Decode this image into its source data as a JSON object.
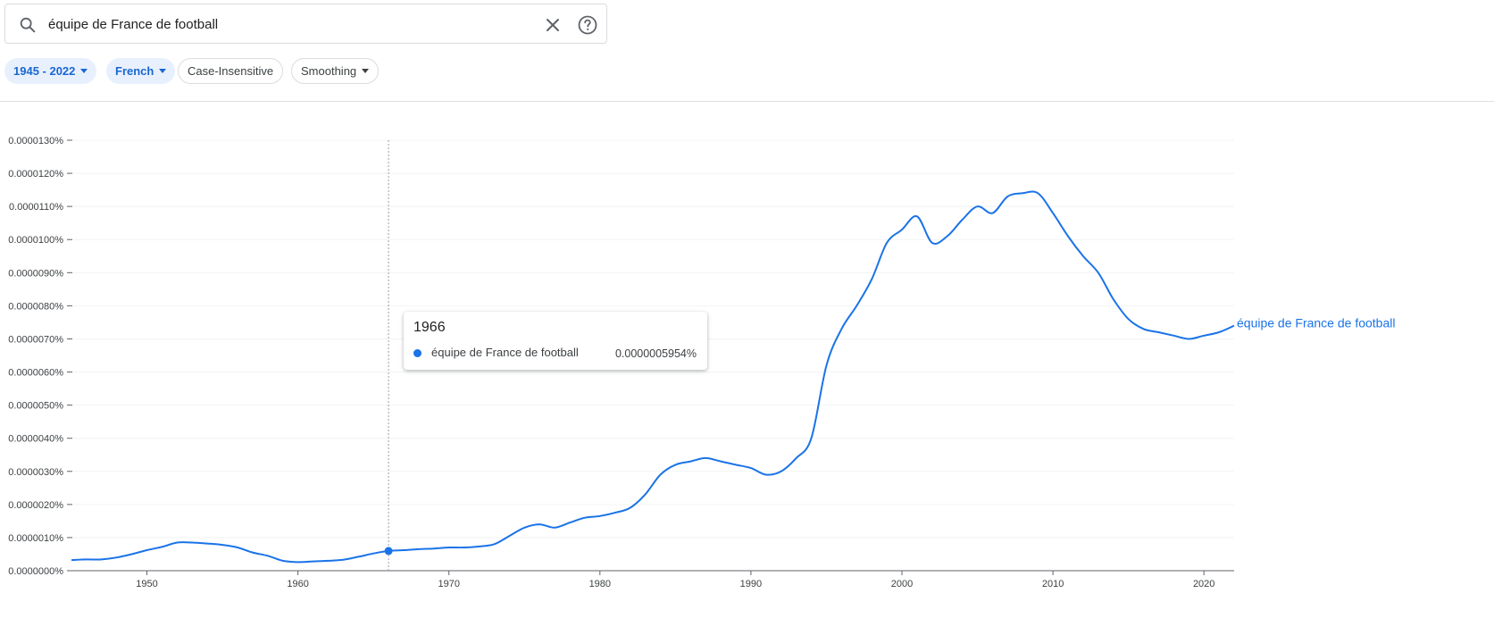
{
  "search": {
    "value": "équipe de France de football",
    "placeholder": ""
  },
  "icons": {
    "search": "search-icon",
    "clear": "close-icon",
    "help": "help-icon"
  },
  "filters": {
    "year_range": "1945 - 2022",
    "corpus": "French",
    "case": "Case-Insensitive",
    "smoothing": "Smoothing"
  },
  "colors": {
    "series": "#1a73e8",
    "chip_active_bg": "#e8f0fe",
    "chip_active_text": "#1967d2"
  },
  "tooltip": {
    "year": "1966",
    "series_name": "équipe de France de football",
    "value": "0.0000005954%"
  },
  "chart_data": {
    "type": "line",
    "title": "",
    "xlabel": "",
    "ylabel": "",
    "xlim": [
      1945,
      2022
    ],
    "ylim": [
      0,
      1.3e-05
    ],
    "y_unit": "%",
    "x_ticks": [
      1950,
      1960,
      1970,
      1980,
      1990,
      2000,
      2010,
      2020
    ],
    "y_ticks": [
      {
        "v": 0,
        "label": "0.0000000%"
      },
      {
        "v": 1e-06,
        "label": "0.0000010%"
      },
      {
        "v": 2e-06,
        "label": "0.0000020%"
      },
      {
        "v": 3e-06,
        "label": "0.0000030%"
      },
      {
        "v": 4e-06,
        "label": "0.0000040%"
      },
      {
        "v": 5e-06,
        "label": "0.0000050%"
      },
      {
        "v": 6e-06,
        "label": "0.0000060%"
      },
      {
        "v": 7e-06,
        "label": "0.0000070%"
      },
      {
        "v": 8e-06,
        "label": "0.0000080%"
      },
      {
        "v": 9e-06,
        "label": "0.0000090%"
      },
      {
        "v": 1e-05,
        "label": "0.0000100%"
      },
      {
        "v": 1.1e-05,
        "label": "0.0000110%"
      },
      {
        "v": 1.2e-05,
        "label": "0.0000120%"
      },
      {
        "v": 1.3e-05,
        "label": "0.0000130%"
      }
    ],
    "grid": true,
    "highlight_x": 1966,
    "series": [
      {
        "name": "équipe de France de football",
        "x": [
          1945,
          1946,
          1947,
          1948,
          1949,
          1950,
          1951,
          1952,
          1953,
          1954,
          1955,
          1956,
          1957,
          1958,
          1959,
          1960,
          1961,
          1962,
          1963,
          1964,
          1965,
          1966,
          1967,
          1968,
          1969,
          1970,
          1971,
          1972,
          1973,
          1974,
          1975,
          1976,
          1977,
          1978,
          1979,
          1980,
          1981,
          1982,
          1983,
          1984,
          1985,
          1986,
          1987,
          1988,
          1989,
          1990,
          1991,
          1992,
          1993,
          1994,
          1995,
          1996,
          1997,
          1998,
          1999,
          2000,
          2001,
          2002,
          2003,
          2004,
          2005,
          2006,
          2007,
          2008,
          2009,
          2010,
          2011,
          2012,
          2013,
          2014,
          2015,
          2016,
          2017,
          2018,
          2019,
          2020,
          2021,
          2022
        ],
        "values": [
          3.2e-07,
          3.4e-07,
          3.4e-07,
          4e-07,
          5e-07,
          6.2e-07,
          7.2e-07,
          8.5e-07,
          8.5e-07,
          8.2e-07,
          7.8e-07,
          7e-07,
          5.5e-07,
          4.5e-07,
          3e-07,
          2.6e-07,
          2.8e-07,
          3e-07,
          3.3e-07,
          4.2e-07,
          5.2e-07,
          5.954e-07,
          6.2e-07,
          6.5e-07,
          6.7e-07,
          7e-07,
          7e-07,
          7.3e-07,
          8e-07,
          1.05e-06,
          1.3e-06,
          1.4e-06,
          1.3e-06,
          1.45e-06,
          1.6e-06,
          1.65e-06,
          1.75e-06,
          1.9e-06,
          2.3e-06,
          2.9e-06,
          3.2e-06,
          3.3e-06,
          3.4e-06,
          3.3e-06,
          3.2e-06,
          3.1e-06,
          2.9e-06,
          3e-06,
          3.4e-06,
          4e-06,
          6.2e-06,
          7.3e-06,
          8e-06,
          8.8e-06,
          9.9e-06,
          1.03e-05,
          1.07e-05,
          9.9e-06,
          1.01e-05,
          1.06e-05,
          1.1e-05,
          1.08e-05,
          1.13e-05,
          1.14e-05,
          1.14e-05,
          1.08e-05,
          1.01e-05,
          9.5e-06,
          9e-06,
          8.2e-06,
          7.6e-06,
          7.3e-06,
          7.2e-06,
          7.1e-06,
          7e-06,
          7.1e-06,
          7.2e-06,
          7.4e-06
        ]
      }
    ]
  }
}
